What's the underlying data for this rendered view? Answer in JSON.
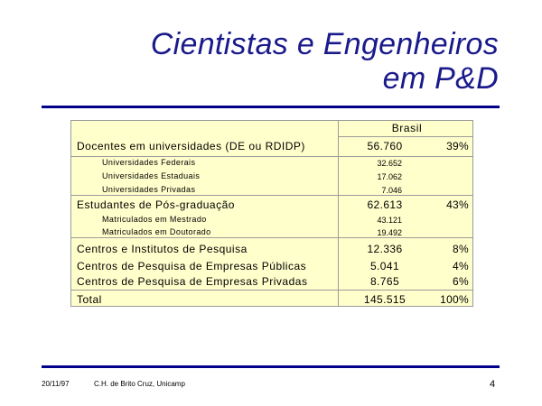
{
  "title": {
    "line1": "Cientistas e Engenheiros",
    "line2": "em P&D"
  },
  "table": {
    "column_header": "Brasil",
    "rows": [
      {
        "label": "Docentes em universidades (DE ou RDIDP)",
        "value": "56.760",
        "pct": "39%"
      },
      {
        "label": "Universidades Federais",
        "value": "32.652"
      },
      {
        "label": "Universidades Estaduais",
        "value": "17.062"
      },
      {
        "label": "Universidades Privadas",
        "value": "7.046"
      },
      {
        "label": "Estudantes de Pós-graduação",
        "value": "62.613",
        "pct": "43%"
      },
      {
        "label": "Matriculados em Mestrado",
        "value": "43.121"
      },
      {
        "label": "Matriculados em Doutorado",
        "value": "19.492"
      },
      {
        "label": "Centros e Institutos de Pesquisa",
        "value": "12.336",
        "pct": "8%"
      },
      {
        "label": "Centros de Pesquisa de Empresas Públicas",
        "value": "5.041",
        "pct": "4%"
      },
      {
        "label": "Centros de Pesquisa de Empresas Privadas",
        "value": "8.765",
        "pct": "6%"
      },
      {
        "label": "Total",
        "value": "145.515",
        "pct": "100%"
      }
    ]
  },
  "footer": {
    "date": "20/11/97",
    "author": "C.H. de Brito Cruz, Unicamp",
    "page": "4"
  }
}
